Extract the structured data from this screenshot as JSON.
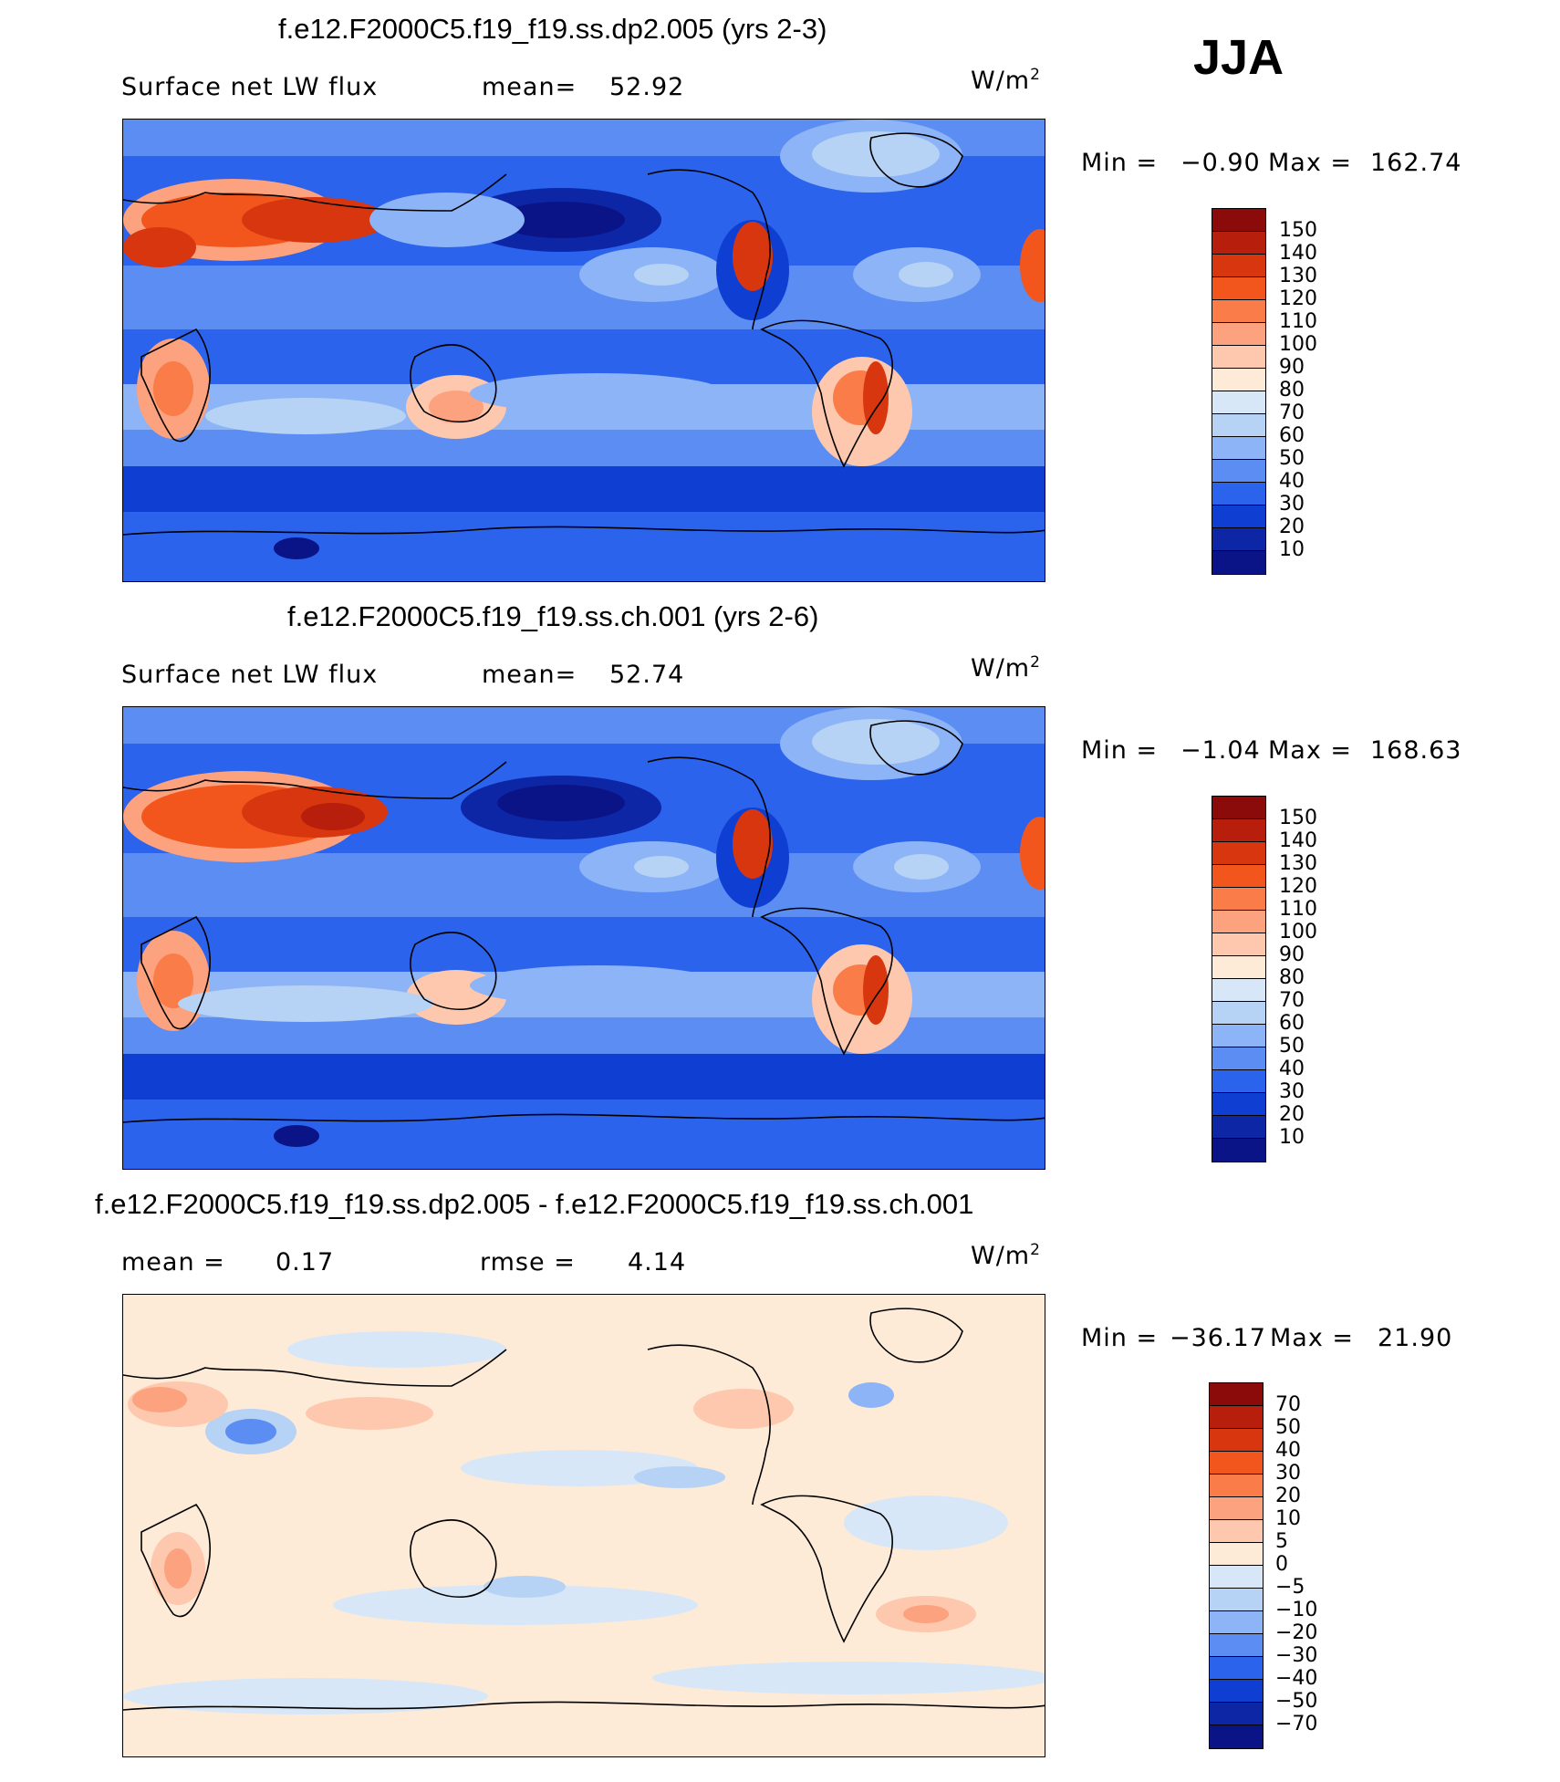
{
  "season": "JJA",
  "units_base": "W/m",
  "units_exp": "2",
  "panels": [
    {
      "title": "f.e12.F2000C5.f19_f19.ss.dp2.005 (yrs 2-3)",
      "left_label": "Surface net LW flux",
      "stat_label": "mean=",
      "stat_value": "52.92",
      "min_label": "Min =",
      "min_value": "−0.90",
      "max_label": "Max =",
      "max_value": "162.74"
    },
    {
      "title": "f.e12.F2000C5.f19_f19.ss.ch.001 (yrs 2-6)",
      "left_label": "Surface net LW flux",
      "stat_label": "mean=",
      "stat_value": "52.74",
      "min_label": "Min =",
      "min_value": "−1.04",
      "max_label": "Max =",
      "max_value": "168.63"
    },
    {
      "title": "f.e12.F2000C5.f19_f19.ss.dp2.005 - f.e12.F2000C5.f19_f19.ss.ch.001",
      "left_label": "mean =",
      "left_value": "0.17",
      "stat_label": "rmse =",
      "stat_value": "4.14",
      "min_label": "Min =",
      "min_value": "−36.17",
      "max_label": "Max =",
      "max_value": "21.90"
    }
  ],
  "colorbar_abs": {
    "labels": [
      "150",
      "140",
      "130",
      "120",
      "110",
      "100",
      "90",
      "80",
      "70",
      "60",
      "50",
      "40",
      "30",
      "20",
      "10"
    ],
    "colors": [
      "#8b0a0a",
      "#b71e0b",
      "#d8360f",
      "#f3561d",
      "#fa7c48",
      "#fca27e",
      "#fdc8ad",
      "#fdebd8",
      "#d8e7f7",
      "#b6d2f4",
      "#8cb4f6",
      "#5b8df3",
      "#2b63ec",
      "#0f3ed3",
      "#0c26a6",
      "#0a1486"
    ]
  },
  "colorbar_diff": {
    "labels": [
      "70",
      "50",
      "40",
      "30",
      "20",
      "10",
      "5",
      "0",
      "−5",
      "−10",
      "−20",
      "−30",
      "−40",
      "−50",
      "−70"
    ],
    "colors": [
      "#8b0a0a",
      "#b71e0b",
      "#d8360f",
      "#f3561d",
      "#fa7c48",
      "#fca27e",
      "#fdc8ad",
      "#fdebd8",
      "#d8e7f7",
      "#b6d2f4",
      "#8cb4f6",
      "#5b8df3",
      "#2b63ec",
      "#0f3ed3",
      "#0c26a6",
      "#0a1486"
    ]
  }
}
